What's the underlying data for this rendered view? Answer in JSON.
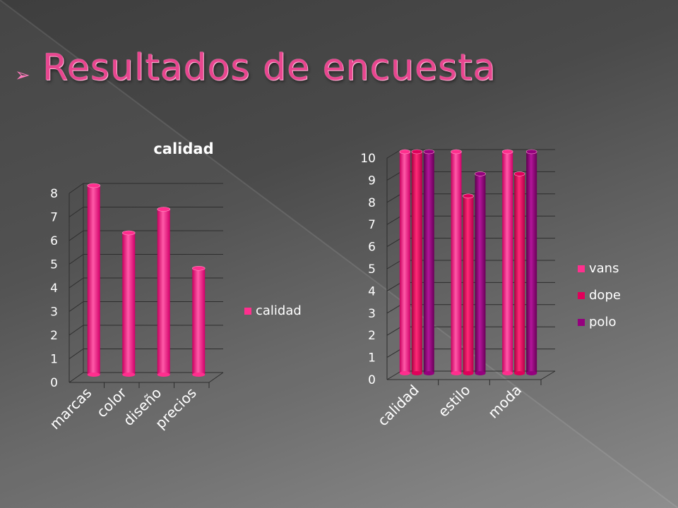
{
  "slide": {
    "title": "Resultados de encuesta",
    "bullet_icon": "arrow-bullet-icon"
  },
  "colors": {
    "pink": "#ff2f8e",
    "magenta": "#e0005a",
    "purple": "#95007e",
    "title": "#e8468f"
  },
  "chart_data": [
    {
      "type": "bar",
      "title": "calidad",
      "categories": [
        "marcas",
        "color",
        "diseño",
        "precios"
      ],
      "series": [
        {
          "name": "calidad",
          "values": [
            8,
            6,
            7,
            4.5
          ],
          "color": "#ff2f8e"
        }
      ],
      "ylim": [
        0,
        8
      ],
      "yticks": [
        "0",
        "1",
        "2",
        "3",
        "4",
        "5",
        "6",
        "7",
        "8"
      ],
      "grid": true,
      "legend": "right"
    },
    {
      "type": "bar",
      "title": "",
      "categories": [
        "calidad",
        "estilo",
        "moda"
      ],
      "series": [
        {
          "name": "vans",
          "values": [
            10,
            10,
            10
          ],
          "color": "#ff2f8e"
        },
        {
          "name": "dope",
          "values": [
            10,
            8,
            9
          ],
          "color": "#e0005a"
        },
        {
          "name": "polo",
          "values": [
            10,
            9,
            10
          ],
          "color": "#95007e"
        }
      ],
      "ylim": [
        0,
        10
      ],
      "yticks": [
        "0",
        "1",
        "2",
        "3",
        "4",
        "5",
        "6",
        "7",
        "8",
        "9",
        "10"
      ],
      "grid": true,
      "legend": "right"
    }
  ]
}
